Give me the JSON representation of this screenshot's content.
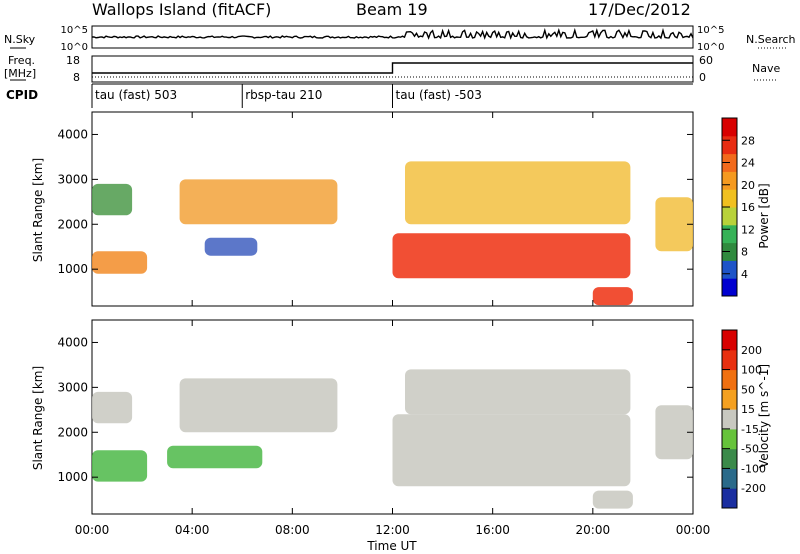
{
  "header": {
    "station": "Wallops Island (fitACF)",
    "beam": "Beam 19",
    "date": "17/Dec/2012"
  },
  "summary": {
    "nsky_label": "N.Sky",
    "nsearch_label": "N.Search",
    "freq_label_line1": "Freq.",
    "freq_label_line2": "[MHz]",
    "nave_label": "Nave",
    "cpid_label": "CPID",
    "nsky_ticks": [
      "10^5",
      "10^0"
    ],
    "nsearch_ticks": [
      "10^5",
      "10^0"
    ],
    "freq_ticks": [
      "18",
      "8"
    ],
    "nave_ticks": [
      "60",
      "0"
    ],
    "cpid_segments": [
      {
        "label": "tau (fast) 503",
        "start_hour": 0
      },
      {
        "label": "rbsp-tau 210",
        "start_hour": 6
      },
      {
        "label": "tau (fast) -503",
        "start_hour": 12
      }
    ]
  },
  "chart_data": [
    {
      "type": "heatmap",
      "name": "power",
      "ylabel": "Slant Range [km]",
      "xlabel": "Time UT",
      "x_tick_labels": [
        "00:00",
        "04:00",
        "08:00",
        "12:00",
        "16:00",
        "20:00",
        "00:00"
      ],
      "x_ticks_hours": [
        0,
        4,
        8,
        12,
        16,
        20,
        24
      ],
      "xlim_hours": [
        0,
        24
      ],
      "ylim": [
        180,
        4500
      ],
      "y_ticks": [
        1000,
        2000,
        3000,
        4000
      ],
      "colorbar": {
        "label": "Power [dB]",
        "ticks": [
          "28",
          "24",
          "20",
          "16",
          "12",
          "8",
          "4"
        ],
        "colors": [
          "#0000d0",
          "#1e54c8",
          "#2f8a3e",
          "#36b257",
          "#b8d23a",
          "#f0c020",
          "#f59a20",
          "#f26a1c",
          "#e82c12",
          "#d80000"
        ]
      },
      "bands": [
        {
          "h0": 0.0,
          "h1": 2.2,
          "r0": 900,
          "r1": 1400,
          "color": "#f28c28"
        },
        {
          "h0": 0.0,
          "h1": 1.6,
          "r0": 2200,
          "r1": 2900,
          "color": "#4c9a4a"
        },
        {
          "h0": 3.5,
          "h1": 9.8,
          "r0": 2000,
          "r1": 3000,
          "color": "#f2a23a"
        },
        {
          "h0": 4.5,
          "h1": 6.6,
          "r0": 1300,
          "r1": 1700,
          "color": "#3f5fbf"
        },
        {
          "h0": 12.0,
          "h1": 21.5,
          "r0": 800,
          "r1": 1800,
          "color": "#ee3010"
        },
        {
          "h0": 12.5,
          "h1": 21.5,
          "r0": 2000,
          "r1": 3400,
          "color": "#f2c040"
        },
        {
          "h0": 20.0,
          "h1": 21.6,
          "r0": 200,
          "r1": 600,
          "color": "#ee3010"
        },
        {
          "h0": 22.5,
          "h1": 24.0,
          "r0": 1400,
          "r1": 2600,
          "color": "#f2c040"
        }
      ]
    },
    {
      "type": "heatmap",
      "name": "velocity",
      "ylabel": "Slant Range [km]",
      "xlabel": "Time UT",
      "x_tick_labels": [
        "00:00",
        "04:00",
        "08:00",
        "12:00",
        "16:00",
        "20:00",
        "00:00"
      ],
      "x_ticks_hours": [
        0,
        4,
        8,
        12,
        16,
        20,
        24
      ],
      "xlim_hours": [
        0,
        24
      ],
      "ylim": [
        180,
        4500
      ],
      "y_ticks": [
        1000,
        2000,
        3000,
        4000
      ],
      "colorbar": {
        "label": "Velocity [m s^-1]",
        "ticks": [
          "200",
          "100",
          "50",
          "15",
          "-15",
          "-50",
          "-100",
          "-200"
        ],
        "colors": [
          "#1a2ea0",
          "#2a6a8a",
          "#3a8a4a",
          "#66c33a",
          "#c8c8c0",
          "#f4a020",
          "#f07010",
          "#e83010",
          "#d80000"
        ]
      },
      "bands": [
        {
          "h0": 0.0,
          "h1": 2.2,
          "r0": 900,
          "r1": 1600,
          "color": "#4cb848"
        },
        {
          "h0": 0.0,
          "h1": 1.6,
          "r0": 2200,
          "r1": 2900,
          "color": "#c8c8c0"
        },
        {
          "h0": 3.5,
          "h1": 9.8,
          "r0": 2000,
          "r1": 3200,
          "color": "#c8c8c0"
        },
        {
          "h0": 3.0,
          "h1": 6.8,
          "r0": 1200,
          "r1": 1700,
          "color": "#4cb848"
        },
        {
          "h0": 12.0,
          "h1": 21.5,
          "r0": 800,
          "r1": 2400,
          "color": "#c8c8c0"
        },
        {
          "h0": 12.5,
          "h1": 21.5,
          "r0": 2400,
          "r1": 3400,
          "color": "#c8c8c0"
        },
        {
          "h0": 20.0,
          "h1": 21.6,
          "r0": 300,
          "r1": 700,
          "color": "#c8c8c0"
        },
        {
          "h0": 22.5,
          "h1": 24.0,
          "r0": 1400,
          "r1": 2600,
          "color": "#c8c8c0"
        }
      ]
    }
  ]
}
